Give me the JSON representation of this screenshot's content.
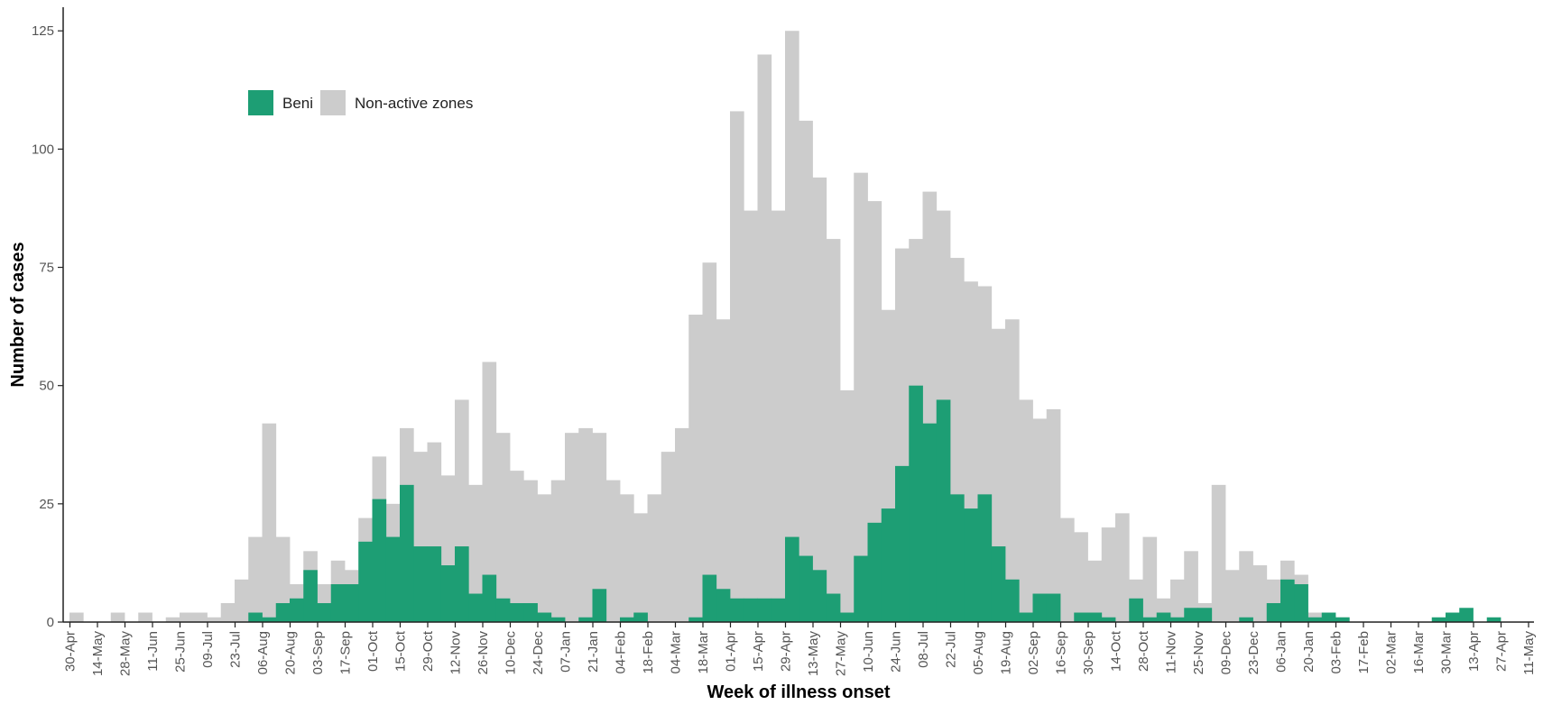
{
  "chart_data": {
    "type": "bar",
    "stacking": "overlay",
    "xlabel": "Week of illness onset",
    "ylabel": "Number of cases",
    "ylim": [
      0,
      130
    ],
    "y_ticks": [
      0,
      25,
      50,
      75,
      100,
      125
    ],
    "x_tick_labels": [
      "30-Apr",
      "14-May",
      "28-May",
      "11-Jun",
      "25-Jun",
      "09-Jul",
      "23-Jul",
      "06-Aug",
      "20-Aug",
      "03-Sep",
      "17-Sep",
      "01-Oct",
      "15-Oct",
      "29-Oct",
      "12-Nov",
      "26-Nov",
      "10-Dec",
      "24-Dec",
      "07-Jan",
      "21-Jan",
      "04-Feb",
      "18-Feb",
      "04-Mar",
      "18-Mar",
      "01-Apr",
      "15-Apr",
      "29-Apr",
      "13-May",
      "27-May",
      "10-Jun",
      "24-Jun",
      "08-Jul",
      "22-Jul",
      "05-Aug",
      "19-Aug",
      "02-Sep",
      "16-Sep",
      "30-Sep",
      "14-Oct",
      "28-Oct",
      "11-Nov",
      "25-Nov",
      "09-Dec",
      "23-Dec",
      "06-Jan",
      "20-Jan",
      "03-Feb",
      "17-Feb",
      "02-Mar",
      "16-Mar",
      "30-Mar",
      "13-Apr",
      "27-Apr",
      "11-May"
    ],
    "grid": false,
    "legend_position": "top-left",
    "series": [
      {
        "name": "Non-active zones",
        "color": "#cccccc",
        "values": [
          2,
          0,
          0,
          2,
          0,
          2,
          0,
          1,
          2,
          2,
          1,
          4,
          9,
          18,
          42,
          18,
          8,
          15,
          8,
          13,
          11,
          22,
          35,
          25,
          41,
          36,
          38,
          31,
          47,
          29,
          55,
          40,
          32,
          30,
          27,
          30,
          40,
          41,
          40,
          30,
          27,
          23,
          27,
          36,
          41,
          65,
          76,
          64,
          108,
          87,
          120,
          87,
          125,
          106,
          94,
          81,
          49,
          95,
          89,
          66,
          79,
          81,
          91,
          87,
          77,
          72,
          71,
          62,
          64,
          47,
          43,
          45,
          22,
          19,
          13,
          20,
          23,
          9,
          18,
          5,
          9,
          15,
          4,
          29,
          11,
          15,
          12,
          9,
          13,
          10,
          2,
          1,
          1,
          0,
          0,
          0,
          0,
          0,
          0,
          0,
          0,
          0,
          0,
          0,
          0,
          0,
          0,
          0
        ]
      },
      {
        "name": "Beni",
        "color": "#1d9e74",
        "values": [
          0,
          0,
          0,
          0,
          0,
          0,
          0,
          0,
          0,
          0,
          0,
          0,
          0,
          2,
          1,
          4,
          5,
          11,
          4,
          8,
          8,
          17,
          26,
          18,
          29,
          16,
          16,
          12,
          16,
          6,
          10,
          5,
          4,
          4,
          2,
          1,
          0,
          1,
          7,
          0,
          1,
          2,
          0,
          0,
          0,
          1,
          10,
          7,
          5,
          5,
          5,
          5,
          18,
          14,
          11,
          6,
          2,
          14,
          21,
          24,
          33,
          50,
          42,
          47,
          27,
          24,
          27,
          16,
          9,
          2,
          6,
          6,
          0,
          2,
          2,
          1,
          0,
          5,
          1,
          2,
          1,
          3,
          3,
          0,
          0,
          1,
          0,
          4,
          9,
          8,
          1,
          2,
          1,
          0,
          0,
          0,
          0,
          0,
          0,
          1,
          2,
          3,
          0,
          1,
          0,
          0,
          0,
          0
        ]
      }
    ]
  }
}
